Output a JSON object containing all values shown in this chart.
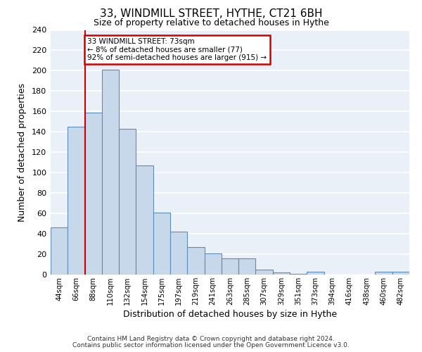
{
  "title": "33, WINDMILL STREET, HYTHE, CT21 6BH",
  "subtitle": "Size of property relative to detached houses in Hythe",
  "xlabel": "Distribution of detached houses by size in Hythe",
  "ylabel": "Number of detached properties",
  "bar_labels": [
    "44sqm",
    "66sqm",
    "88sqm",
    "110sqm",
    "132sqm",
    "154sqm",
    "175sqm",
    "197sqm",
    "219sqm",
    "241sqm",
    "263sqm",
    "285sqm",
    "307sqm",
    "329sqm",
    "351sqm",
    "373sqm",
    "394sqm",
    "416sqm",
    "438sqm",
    "460sqm",
    "482sqm"
  ],
  "bar_heights": [
    46,
    145,
    159,
    201,
    143,
    107,
    61,
    42,
    27,
    21,
    16,
    16,
    5,
    2,
    1,
    3,
    0,
    0,
    0,
    3,
    3
  ],
  "bar_color": "#c8d8eb",
  "bar_edge_color": "#5b8db8",
  "grid_color": "#c8d8eb",
  "vline_color": "#cc0000",
  "vline_x_index": 1.5,
  "annotation_text": "33 WINDMILL STREET: 73sqm\n← 8% of detached houses are smaller (77)\n92% of semi-detached houses are larger (915) →",
  "annotation_box_edge": "#cc0000",
  "ylim": [
    0,
    240
  ],
  "yticks": [
    0,
    20,
    40,
    60,
    80,
    100,
    120,
    140,
    160,
    180,
    200,
    220,
    240
  ],
  "footer_line1": "Contains HM Land Registry data © Crown copyright and database right 2024.",
  "footer_line2": "Contains public sector information licensed under the Open Government Licence v3.0.",
  "fig_bg": "#eaf0f8"
}
